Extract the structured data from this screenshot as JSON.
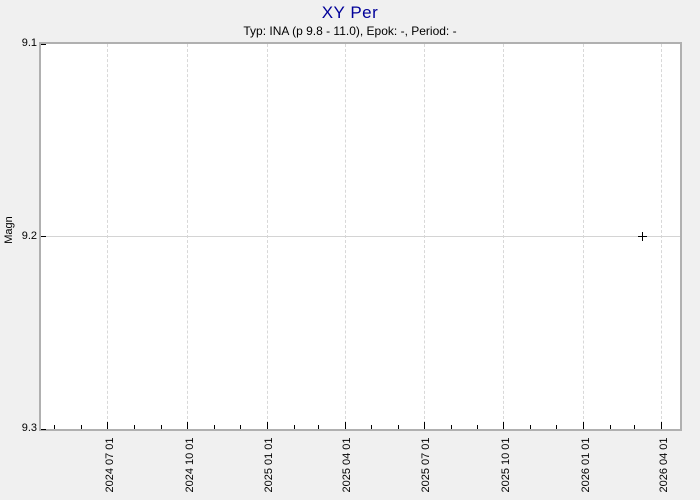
{
  "header": {
    "title": "XY Per",
    "subtitle": "Typ: INA (p 9.8 - 11.0), Epok: -, Period: -"
  },
  "colors": {
    "title": "#000099",
    "background": "#f0f0f0",
    "plot_background": "#ffffff",
    "plot_border": "#b0b0b0",
    "grid_dashed": "#d8d8d8",
    "grid_solid": "#d4d4d4",
    "marker": "#000000"
  },
  "chart_data": {
    "type": "scatter",
    "title": "XY Per",
    "subtitle": "Typ: INA (p 9.8 - 11.0), Epok: -, Period: -",
    "xlabel": "",
    "ylabel": "Magn",
    "x_domain": [
      "2024-04-15",
      "2026-04-22"
    ],
    "y_domain": [
      9.1,
      9.3
    ],
    "y_axis_reversed": true,
    "grid": {
      "vertical_dashed": true,
      "horizontal_solid": true
    },
    "legend": null,
    "y_ticks": [
      {
        "value": 9.1,
        "label": "9.1"
      },
      {
        "value": 9.2,
        "label": "9.2"
      },
      {
        "value": 9.3,
        "label": "9.3"
      }
    ],
    "y_gridlines": [
      9.2
    ],
    "x_major_ticks": [
      {
        "date": "2024-07-01",
        "label": "2024 07 01"
      },
      {
        "date": "2024-10-01",
        "label": "2024 10 01"
      },
      {
        "date": "2025-01-01",
        "label": "2025 01 01"
      },
      {
        "date": "2025-04-01",
        "label": "2025 04 01"
      },
      {
        "date": "2025-07-01",
        "label": "2025 07 01"
      },
      {
        "date": "2025-10-01",
        "label": "2025 10 01"
      },
      {
        "date": "2026-01-01",
        "label": "2026 01 01"
      },
      {
        "date": "2026-04-01",
        "label": "2026 04 01"
      }
    ],
    "x_minor_ticks": [
      "2024-05-01",
      "2024-06-01",
      "2024-08-01",
      "2024-09-01",
      "2024-11-01",
      "2024-12-01",
      "2025-02-01",
      "2025-03-01",
      "2025-05-01",
      "2025-06-01",
      "2025-08-01",
      "2025-09-01",
      "2025-11-01",
      "2025-12-01",
      "2026-02-01",
      "2026-03-01"
    ],
    "points": [
      {
        "date": "2026-03-10",
        "mag": 9.2,
        "marker": "plus"
      }
    ]
  }
}
